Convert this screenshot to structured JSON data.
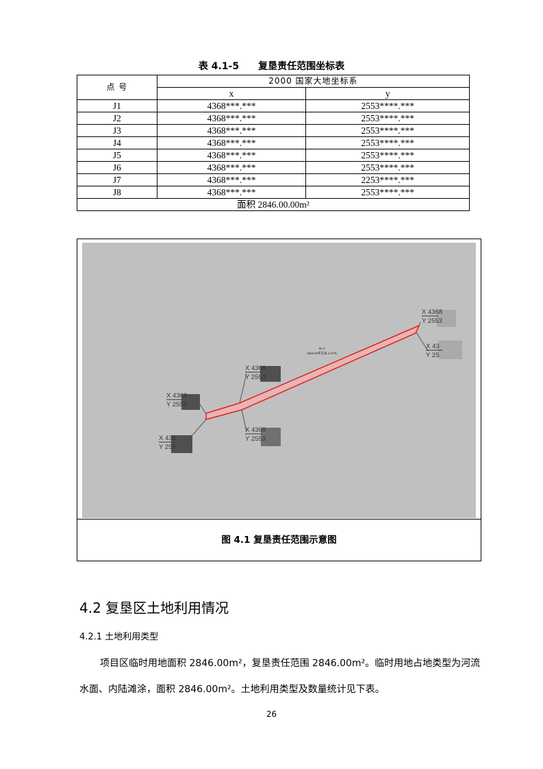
{
  "table": {
    "number": "表 4.1-5",
    "title": "复垦责任范围坐标表",
    "col_point": "点 号",
    "col_system": "2000 国家大地坐标系",
    "col_x": "x",
    "col_y": "y",
    "rows": [
      {
        "id": "J1",
        "x": "4368***.***",
        "y": "2553****.***"
      },
      {
        "id": "J2",
        "x": "4368***.***",
        "y": "2553****.***"
      },
      {
        "id": "J3",
        "x": "4368***.***",
        "y": "2553****.***"
      },
      {
        "id": "J4",
        "x": "4368***.***",
        "y": "2553****.***"
      },
      {
        "id": "J5",
        "x": "4368***.***",
        "y": "2553****.***"
      },
      {
        "id": "J6",
        "x": "4368***.***",
        "y": "2553****.***"
      },
      {
        "id": "J7",
        "x": "4368***.***",
        "y": "2253****.***"
      },
      {
        "id": "J8",
        "x": "4368***.***",
        "y": "2553****.***"
      }
    ],
    "area": "面积 2846.00.00m²"
  },
  "figure": {
    "caption": "图 4.1 复垦责任范围示意图",
    "boundary_color": "#e02020",
    "background_color": "#c0c0c0",
    "labels": [
      "X 4368",
      "Y 2553",
      "X 436",
      "Y 255",
      "X 43",
      "Y 25"
    ],
    "center_label": [
      "tb=#",
      "2846.00平方米 4.27%"
    ]
  },
  "section": {
    "heading": "4.2 复垦区土地利用情况",
    "subheading": "4.2.1 土地利用类型",
    "para_line1": "项目区临时用地面积 2846.00m²，复垦责任范围 2846.00m²。临时用地占地类型为河流",
    "para_line2": "水面、内陆滩涂，面积 2846.00m²。土地利用类型及数量统计见下表。"
  },
  "page_number": "26"
}
